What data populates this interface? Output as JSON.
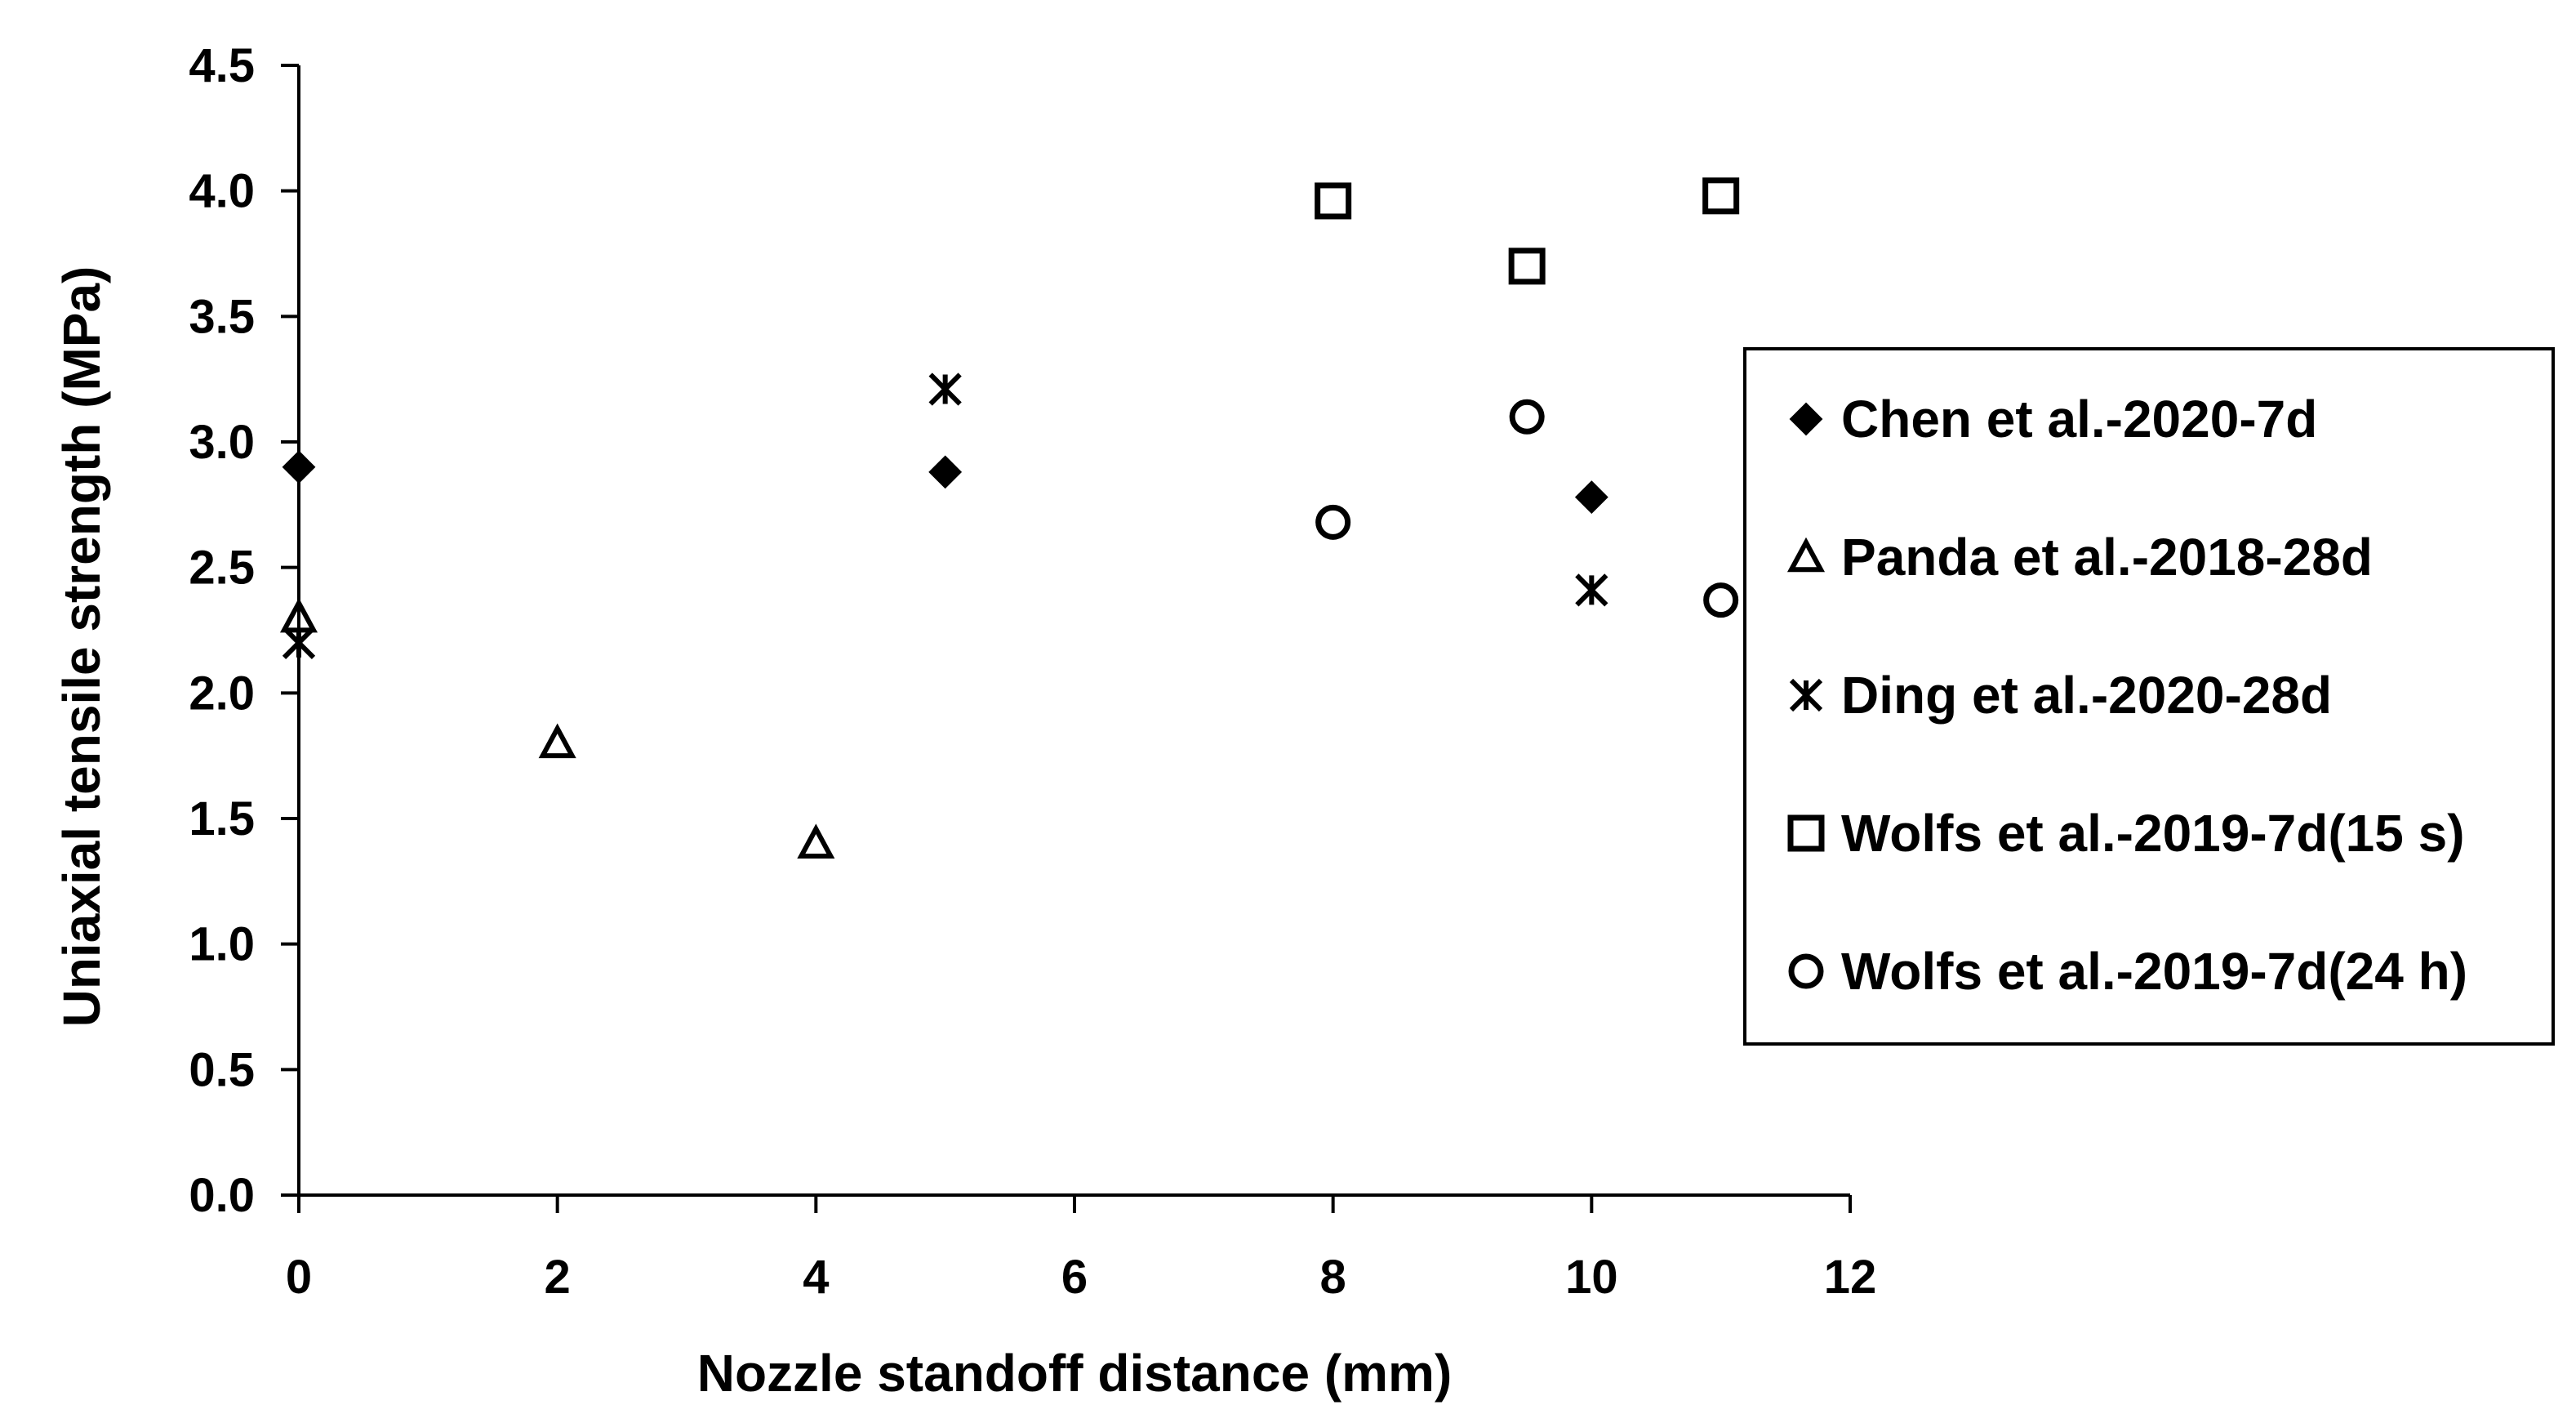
{
  "chart_data": {
    "type": "scatter",
    "xlabel": "Nozzle standoff distance (mm)",
    "ylabel": "Uniaxial tensile strength (MPa)",
    "xlim": [
      0,
      12
    ],
    "ylim": [
      0,
      4.5
    ],
    "x_ticks": [
      "0",
      "2",
      "4",
      "6",
      "8",
      "10",
      "12"
    ],
    "y_ticks": [
      "0.0",
      "0.5",
      "1.0",
      "1.5",
      "2.0",
      "2.5",
      "3.0",
      "3.5",
      "4.0",
      "4.5"
    ],
    "grid": false,
    "legend_position": "right",
    "series": [
      {
        "name": "Chen et al.-2020-7d",
        "marker": "diamond-filled",
        "points": [
          {
            "x": 0,
            "y": 2.9
          },
          {
            "x": 5,
            "y": 2.88
          },
          {
            "x": 10,
            "y": 2.78
          }
        ]
      },
      {
        "name": "Panda et al.-2018-28d",
        "marker": "triangle-open",
        "points": [
          {
            "x": 0,
            "y": 2.3
          },
          {
            "x": 2,
            "y": 1.8
          },
          {
            "x": 4,
            "y": 1.4
          }
        ]
      },
      {
        "name": "Ding et al.-2020-28d",
        "marker": "asterisk",
        "points": [
          {
            "x": 0,
            "y": 2.2
          },
          {
            "x": 5,
            "y": 3.21
          },
          {
            "x": 10,
            "y": 2.41
          }
        ]
      },
      {
        "name": "Wolfs et al.-2019-7d(15 s)",
        "marker": "square-open",
        "points": [
          {
            "x": 8,
            "y": 3.96
          },
          {
            "x": 9.5,
            "y": 3.7
          },
          {
            "x": 11,
            "y": 3.98
          }
        ]
      },
      {
        "name": "Wolfs et al.-2019-7d(24 h)",
        "marker": "circle-open",
        "points": [
          {
            "x": 8,
            "y": 2.68
          },
          {
            "x": 9.5,
            "y": 3.1
          },
          {
            "x": 11,
            "y": 2.37
          }
        ]
      }
    ]
  }
}
